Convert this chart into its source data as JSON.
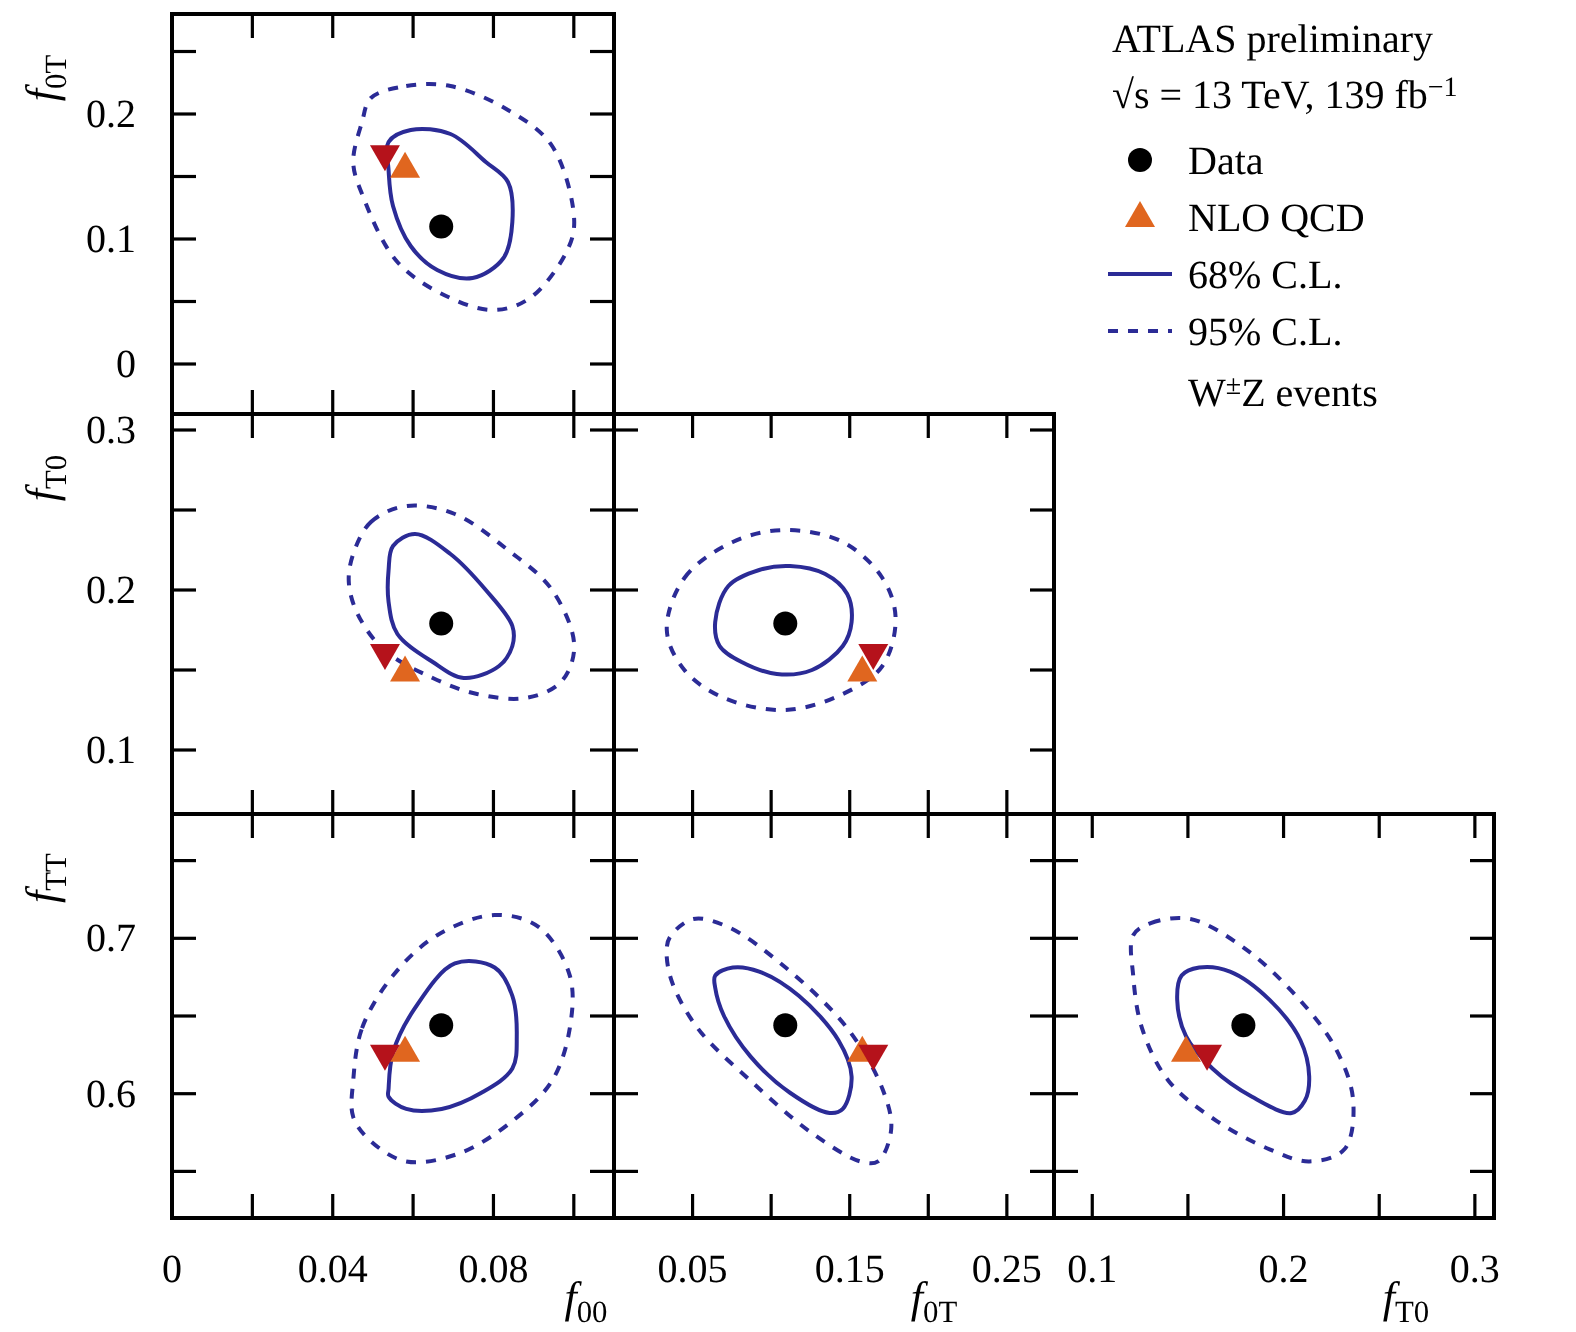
{
  "chart_data": [
    {
      "type": "scatter",
      "ylabel": "f$_{0T}$",
      "legend_title": "ATLAS preliminary",
      "annotations": [
        "√s = 13 TeV, 139 fb$^{−1}$",
        "W$^{±}$Z events"
      ],
      "legend": "right",
      "tick_labels": "y",
      "xlim": [
        0,
        0.11
      ],
      "xticks": [
        0,
        {
          "value": 0.02,
          "label": null
        },
        0.04,
        {
          "value": 0.06,
          "label": null
        },
        0.08,
        {
          "value": 0.1,
          "label": null
        }
      ],
      "ylim": [
        -0.04,
        0.28
      ],
      "yticks": [
        0,
        {
          "value": 0.05,
          "label": null
        },
        0.1,
        {
          "value": 0.15,
          "label": null
        },
        0.2,
        {
          "value": 0.25,
          "label": null
        }
      ],
      "series": [
        {
          "name": "Data",
          "type": "scatter",
          "marker": "circle",
          "color": "#000000",
          "x": [
            0.067
          ],
          "values": [
            0.11
          ]
        },
        {
          "name": "NLO QCD",
          "type": "scatter",
          "marker": "triangle",
          "color": "#e0661f",
          "x": [
            0.058
          ],
          "values": [
            0.157
          ]
        },
        {
          "type": "scatter",
          "marker": "triangle_down",
          "color": "#b5121b",
          "x": [
            0.053
          ],
          "values": [
            0.167
          ]
        },
        {
          "name": "68% C.L.",
          "type": "line",
          "line_style": "solid",
          "color": "#2b2b96"
        },
        {
          "name": "95% C.L.",
          "type": "line",
          "line_style": "dashed",
          "color": "#2b2b96"
        }
      ]
    },
    {
      "type": "scatter",
      "ylabel": "f$_{T0}$",
      "tick_labels": "y",
      "xlim": [
        0,
        0.11
      ],
      "xticks": [
        0,
        {
          "value": 0.02,
          "label": null
        },
        0.04,
        {
          "value": 0.06,
          "label": null
        },
        0.08,
        {
          "value": 0.1,
          "label": null
        }
      ],
      "ylim": [
        0.06,
        0.31
      ],
      "yticks": [
        0.1,
        {
          "value": 0.15,
          "label": null
        },
        0.2,
        {
          "value": 0.25,
          "label": null
        },
        0.3
      ],
      "series": [
        {
          "type": "scatter",
          "marker": "circle",
          "color": "#000000",
          "x": [
            0.067
          ],
          "values": [
            0.179
          ]
        },
        {
          "type": "scatter",
          "marker": "triangle",
          "color": "#e0661f",
          "x": [
            0.058
          ],
          "values": [
            0.149
          ]
        },
        {
          "type": "scatter",
          "marker": "triangle_down",
          "color": "#b5121b",
          "x": [
            0.053
          ],
          "values": [
            0.16
          ]
        }
      ]
    },
    {
      "type": "scatter",
      "tick_labels": false,
      "xlim": [
        0,
        0.28
      ],
      "xticks": [
        {
          "value": 0,
          "label": null
        },
        0.05,
        {
          "value": 0.1,
          "label": null
        },
        0.15,
        {
          "value": 0.2,
          "label": null
        },
        0.25
      ],
      "ylim": [
        0.06,
        0.31
      ],
      "yticks": [
        0.1,
        {
          "value": 0.15,
          "label": null
        },
        0.2,
        {
          "value": 0.25,
          "label": null
        },
        0.3
      ],
      "series": [
        {
          "type": "scatter",
          "marker": "circle",
          "color": "#000000",
          "x": [
            0.109
          ],
          "values": [
            0.179
          ]
        },
        {
          "type": "scatter",
          "marker": "triangle",
          "color": "#e0661f",
          "x": [
            0.158
          ],
          "values": [
            0.149
          ]
        },
        {
          "type": "scatter",
          "marker": "triangle_down",
          "color": "#b5121b",
          "x": [
            0.165
          ],
          "values": [
            0.16
          ]
        }
      ]
    },
    {
      "type": "scatter",
      "xlabel": "f$_{00}$",
      "ylabel": "f$_{TT}$",
      "xlim": [
        0,
        0.11
      ],
      "xticks": [
        0,
        {
          "value": 0.02,
          "label": null
        },
        0.04,
        {
          "value": 0.06,
          "label": null
        },
        0.08,
        {
          "value": 0.1,
          "label": null
        }
      ],
      "ylim": [
        0.52,
        0.78
      ],
      "yticks": [
        {
          "value": 0.55,
          "label": null
        },
        0.6,
        {
          "value": 0.65,
          "label": null
        },
        0.7,
        {
          "value": 0.75,
          "label": null
        }
      ],
      "series": [
        {
          "type": "scatter",
          "marker": "circle",
          "color": "#000000",
          "x": [
            0.067
          ],
          "values": [
            0.644
          ]
        },
        {
          "type": "scatter",
          "marker": "triangle",
          "color": "#e0661f",
          "x": [
            0.058
          ],
          "values": [
            0.627
          ]
        },
        {
          "type": "scatter",
          "marker": "triangle_down",
          "color": "#b5121b",
          "x": [
            0.053
          ],
          "values": [
            0.625
          ]
        }
      ]
    },
    {
      "type": "scatter",
      "xlabel": "f$_{0T}$",
      "tick_labels": "x",
      "xlim": [
        0,
        0.28
      ],
      "xticks": [
        {
          "value": 0,
          "label": null
        },
        0.05,
        {
          "value": 0.1,
          "label": null
        },
        0.15,
        {
          "value": 0.2,
          "label": null
        },
        0.25
      ],
      "ylim": [
        0.52,
        0.78
      ],
      "yticks": [
        {
          "value": 0.55,
          "label": null
        },
        0.6,
        {
          "value": 0.65,
          "label": null
        },
        0.7,
        {
          "value": 0.75,
          "label": null
        }
      ],
      "series": [
        {
          "type": "scatter",
          "marker": "circle",
          "color": "#000000",
          "x": [
            0.109
          ],
          "values": [
            0.644
          ]
        },
        {
          "type": "scatter",
          "marker": "triangle",
          "color": "#e0661f",
          "x": [
            0.158
          ],
          "values": [
            0.627
          ]
        },
        {
          "type": "scatter",
          "marker": "triangle_down",
          "color": "#b5121b",
          "x": [
            0.165
          ],
          "values": [
            0.625
          ]
        }
      ]
    },
    {
      "type": "scatter",
      "xlabel": "f$_{T0}$",
      "tick_labels": "x",
      "xlim": [
        0.08,
        0.31
      ],
      "xticks": [
        0.1,
        {
          "value": 0.15,
          "label": null
        },
        0.2,
        {
          "value": 0.25,
          "label": null
        },
        0.3
      ],
      "ylim": [
        0.52,
        0.78
      ],
      "yticks": [
        {
          "value": 0.55,
          "label": null
        },
        0.6,
        {
          "value": 0.65,
          "label": null
        },
        0.7,
        {
          "value": 0.75,
          "label": null
        }
      ],
      "series": [
        {
          "type": "scatter",
          "marker": "circle",
          "color": "#000000",
          "x": [
            0.179
          ],
          "values": [
            0.644
          ]
        },
        {
          "type": "scatter",
          "marker": "triangle",
          "color": "#e0661f",
          "x": [
            0.149
          ],
          "values": [
            0.627
          ]
        },
        {
          "type": "scatter",
          "marker": "triangle_down",
          "color": "#b5121b",
          "x": [
            0.16
          ],
          "values": [
            0.625
          ]
        }
      ]
    }
  ]
}
